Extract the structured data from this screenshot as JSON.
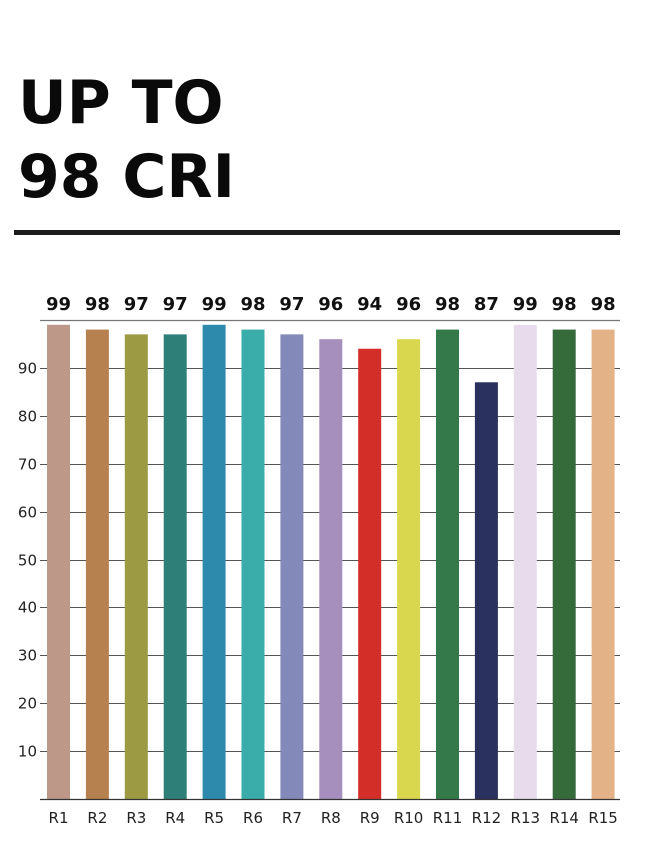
{
  "headline": {
    "line1": "UP TO",
    "line2": "98 CRI"
  },
  "chart_data": {
    "type": "bar",
    "categories": [
      "R1",
      "R2",
      "R3",
      "R4",
      "R5",
      "R6",
      "R7",
      "R8",
      "R9",
      "R10",
      "R11",
      "R12",
      "R13",
      "R14",
      "R15"
    ],
    "values": [
      99,
      98,
      97,
      97,
      99,
      98,
      97,
      96,
      94,
      96,
      98,
      87,
      99,
      98,
      98
    ],
    "value_labels": [
      "99",
      "98",
      "97",
      "97",
      "99",
      "98",
      "97",
      "96",
      "94",
      "96",
      "98",
      "87",
      "99",
      "98",
      "98"
    ],
    "colors": [
      "#bd9787",
      "#b7814f",
      "#9c9a42",
      "#2e7f77",
      "#2e8aad",
      "#3aaca9",
      "#8389b8",
      "#a68ebd",
      "#d42e29",
      "#d8d74d",
      "#33794a",
      "#2b315e",
      "#e8dcec",
      "#356a3b",
      "#e4b287"
    ],
    "yticks": [
      10,
      20,
      30,
      40,
      50,
      60,
      70,
      80,
      90
    ],
    "ylim": [
      0,
      100
    ],
    "title": "",
    "xlabel": "",
    "ylabel": "",
    "grid": true,
    "legend": "none"
  }
}
